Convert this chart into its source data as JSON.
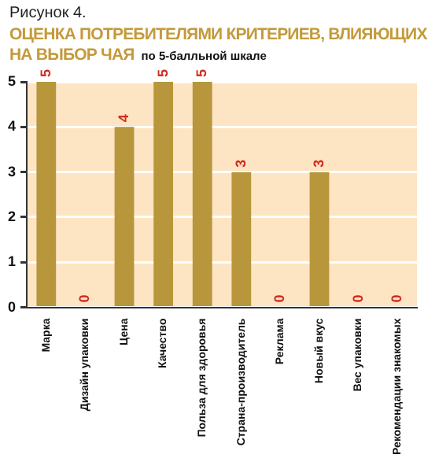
{
  "chart_data": {
    "type": "bar",
    "title": "ОЦЕНКА ПОТРЕБИТЕЛЯМИ КРИТЕРИЕВ, ВЛИЯЮЩИХ НА ВЫБОР ЧАЯ",
    "subtitle": "по 5-балльной шкале",
    "annotations": [
      "Рисунок 4."
    ],
    "categories": [
      "Марка",
      "Дизайн упаковки",
      "Цена",
      "Качество",
      "Польза для здоровья",
      "Страна-производитель",
      "Реклама",
      "Новый вкус",
      "Вес упаковки",
      "Рекомендации знакомых"
    ],
    "values": [
      5,
      0,
      4,
      5,
      5,
      3,
      0,
      3,
      0,
      0
    ],
    "color": "#b8963c",
    "ylim": [
      0,
      5
    ],
    "yticks": [
      0,
      1,
      2,
      3,
      4,
      5
    ],
    "grid": "y",
    "data_labels": true,
    "legend": false
  }
}
